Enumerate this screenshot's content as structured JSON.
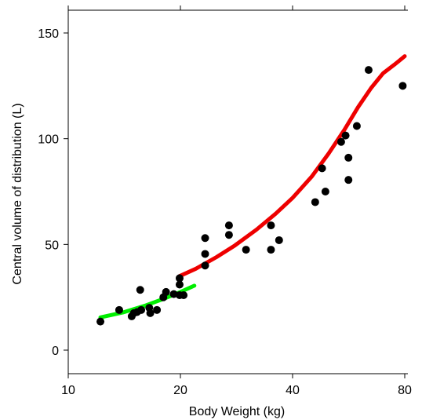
{
  "chart_data": {
    "type": "scatter",
    "xlabel": "Body Weight (kg)",
    "ylabel": "Central volume of distribution (L)",
    "x_scale": "log",
    "xlim": [
      10,
      90
    ],
    "ylim": [
      -8,
      160
    ],
    "x_ticks": [
      {
        "value": 10,
        "label": "10"
      },
      {
        "value": 20,
        "label": "20"
      },
      {
        "value": 40,
        "label": "40"
      },
      {
        "value": 80,
        "label": "80"
      }
    ],
    "y_ticks": [
      {
        "value": 0,
        "label": "0"
      },
      {
        "value": 50,
        "label": "50"
      },
      {
        "value": 100,
        "label": "100"
      },
      {
        "value": 150,
        "label": "150"
      }
    ],
    "grid": false,
    "colors": {
      "points": "#000000",
      "low_weight_fit": "#00ee00",
      "high_weight_fit": "#ee0000"
    },
    "points": [
      {
        "x": 12.2,
        "y": 13.5
      },
      {
        "x": 13.7,
        "y": 19.0
      },
      {
        "x": 14.8,
        "y": 16.0
      },
      {
        "x": 15.0,
        "y": 17.5
      },
      {
        "x": 15.3,
        "y": 18.0
      },
      {
        "x": 15.6,
        "y": 28.5
      },
      {
        "x": 15.7,
        "y": 19.0
      },
      {
        "x": 16.5,
        "y": 20.0
      },
      {
        "x": 16.6,
        "y": 17.5
      },
      {
        "x": 17.3,
        "y": 19.0
      },
      {
        "x": 18.0,
        "y": 25.0
      },
      {
        "x": 18.3,
        "y": 27.5
      },
      {
        "x": 19.2,
        "y": 26.5
      },
      {
        "x": 19.9,
        "y": 26.0
      },
      {
        "x": 19.9,
        "y": 31.0
      },
      {
        "x": 19.9,
        "y": 34.0
      },
      {
        "x": 20.4,
        "y": 26.0
      },
      {
        "x": 23.3,
        "y": 40.0
      },
      {
        "x": 23.3,
        "y": 45.5
      },
      {
        "x": 23.3,
        "y": 53.0
      },
      {
        "x": 27.0,
        "y": 54.5
      },
      {
        "x": 27.0,
        "y": 59.0
      },
      {
        "x": 30.0,
        "y": 47.5
      },
      {
        "x": 35.0,
        "y": 47.5
      },
      {
        "x": 35.0,
        "y": 59.0
      },
      {
        "x": 36.8,
        "y": 52.0
      },
      {
        "x": 46.0,
        "y": 70.0
      },
      {
        "x": 48.0,
        "y": 86.0
      },
      {
        "x": 49.0,
        "y": 75.0
      },
      {
        "x": 54.0,
        "y": 98.5
      },
      {
        "x": 55.5,
        "y": 101.5
      },
      {
        "x": 56.5,
        "y": 80.5
      },
      {
        "x": 56.5,
        "y": 91.0
      },
      {
        "x": 59.5,
        "y": 106.0
      },
      {
        "x": 64.0,
        "y": 132.5
      },
      {
        "x": 79.0,
        "y": 125.0
      }
    ],
    "series": [
      {
        "color": "#00ee00",
        "x": [
          12.2,
          14,
          16,
          18,
          20,
          21.8
        ],
        "y": [
          15.5,
          17.8,
          20.9,
          24.2,
          27.5,
          30.5
        ]
      },
      {
        "color": "#ee0000",
        "x": [
          19.9,
          22,
          25,
          28,
          32,
          36,
          40,
          45,
          50,
          55,
          60,
          65,
          70,
          75,
          80
        ],
        "y": [
          35,
          38.5,
          44,
          49.5,
          57,
          64.5,
          72,
          82,
          93,
          104,
          115,
          124,
          131,
          135,
          139
        ]
      }
    ]
  }
}
